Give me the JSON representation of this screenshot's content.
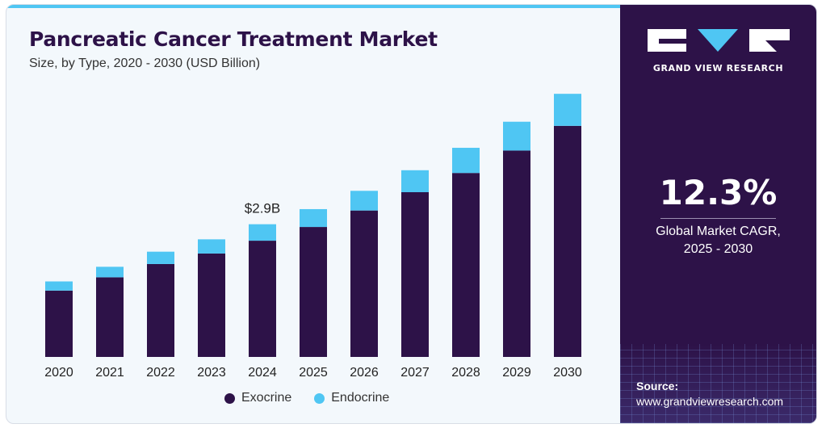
{
  "header": {
    "title": "Pancreatic Cancer Treatment Market",
    "subtitle": "Size, by Type, 2020 - 2030 (USD Billion)"
  },
  "colors": {
    "exocrine": "#2d1248",
    "endocrine": "#4fc6f3",
    "panel_bg": "#2d1248",
    "accent": "#4fc6f3"
  },
  "chart_data": {
    "type": "bar",
    "stacked": true,
    "categories": [
      "2020",
      "2021",
      "2022",
      "2023",
      "2024",
      "2025",
      "2026",
      "2027",
      "2028",
      "2029",
      "2030"
    ],
    "series": [
      {
        "name": "Exocrine",
        "values": [
          1.45,
          1.74,
          2.03,
          2.26,
          2.54,
          2.84,
          3.2,
          3.6,
          4.02,
          4.51,
          5.05
        ]
      },
      {
        "name": "Endocrine",
        "values": [
          0.2,
          0.23,
          0.27,
          0.31,
          0.36,
          0.39,
          0.43,
          0.48,
          0.55,
          0.63,
          0.7
        ]
      }
    ],
    "annotations": [
      {
        "category": "2024",
        "label": "$2.9B"
      }
    ],
    "ylim": [
      0,
      6
    ],
    "grid": false,
    "legend_position": "bottom"
  },
  "legend": {
    "items": [
      {
        "label": "Exocrine",
        "color": "#2d1248"
      },
      {
        "label": "Endocrine",
        "color": "#4fc6f3"
      }
    ]
  },
  "panel": {
    "brand": "GRAND VIEW RESEARCH",
    "cagr_value": "12.3%",
    "cagr_label_line1": "Global Market CAGR,",
    "cagr_label_line2": "2025 - 2030",
    "source_label": "Source:",
    "source_url": "www.grandviewresearch.com"
  }
}
